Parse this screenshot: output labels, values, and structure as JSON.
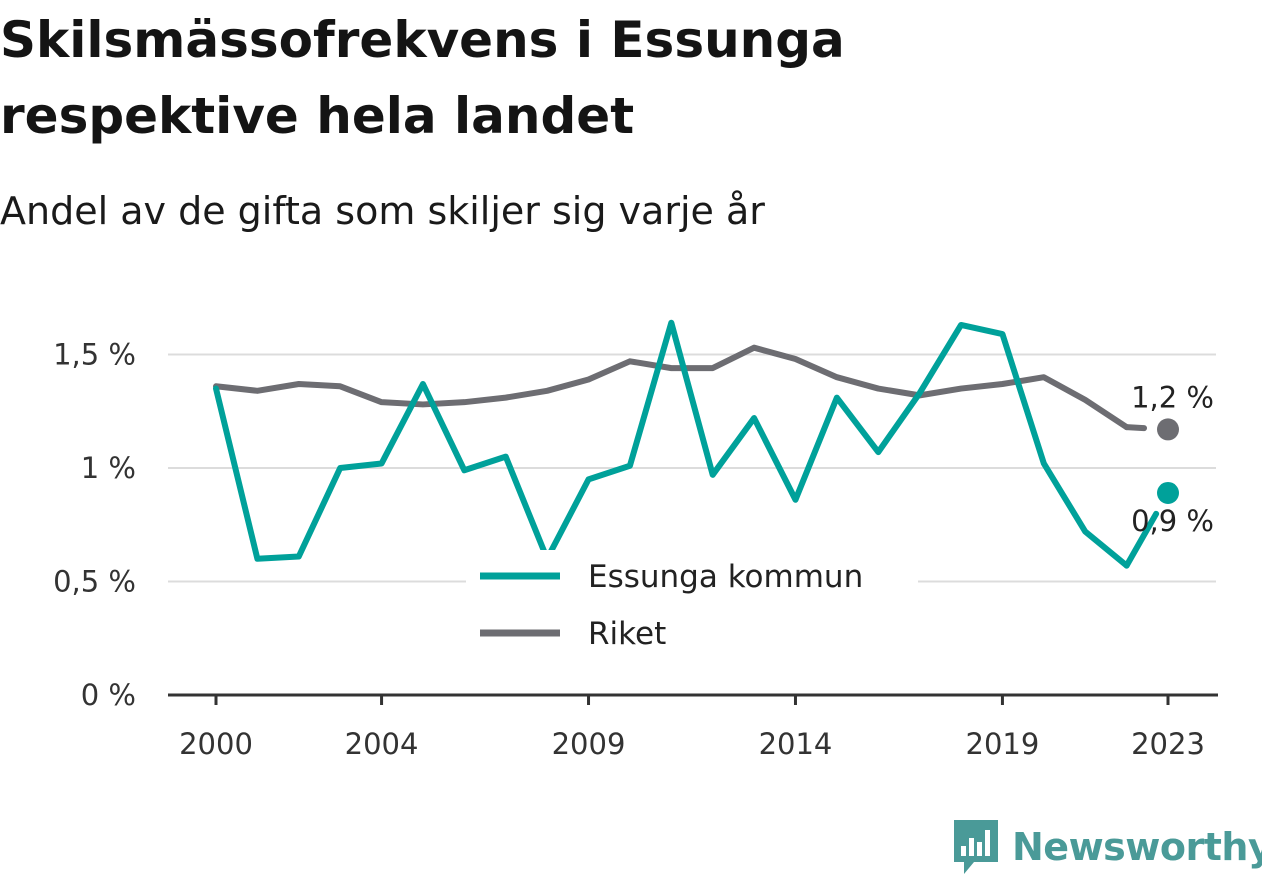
{
  "header": {
    "title": "Skilsmässofrekvens i Essunga respektive hela landet",
    "subtitle": "Andel av de gifta som skiljer sig varje år"
  },
  "brand": {
    "name": "Newsworthy",
    "icon": "newsworthy-chart-bubble-icon",
    "color": "#4a9a98"
  },
  "chart_data": {
    "type": "line",
    "x": [
      2000,
      2001,
      2002,
      2003,
      2004,
      2005,
      2006,
      2007,
      2008,
      2009,
      2010,
      2011,
      2012,
      2013,
      2014,
      2015,
      2016,
      2017,
      2018,
      2019,
      2020,
      2021,
      2022,
      2023
    ],
    "x_ticks": [
      "2000",
      "2004",
      "2009",
      "2014",
      "2019",
      "2023"
    ],
    "y_ticks": [
      "0 %",
      "0,5 %",
      "1 %",
      "1,5 %"
    ],
    "ylim": [
      0,
      1.65
    ],
    "grid": true,
    "legend": "center",
    "series": [
      {
        "name": "Essunga kommun",
        "color": "#00a19a",
        "values": [
          1.35,
          0.6,
          0.61,
          1.0,
          1.02,
          1.37,
          0.99,
          1.05,
          0.6,
          0.95,
          1.01,
          1.64,
          0.97,
          1.22,
          0.86,
          1.31,
          1.07,
          1.33,
          1.63,
          1.59,
          1.02,
          0.72,
          0.57,
          0.89
        ],
        "end_label": "0,9 %"
      },
      {
        "name": "Riket",
        "color": "#6d6d72",
        "values": [
          1.36,
          1.34,
          1.37,
          1.36,
          1.29,
          1.28,
          1.29,
          1.31,
          1.34,
          1.39,
          1.47,
          1.44,
          1.44,
          1.53,
          1.48,
          1.4,
          1.35,
          1.32,
          1.35,
          1.37,
          1.4,
          1.3,
          1.18,
          1.17
        ],
        "end_label": "1,2 %"
      }
    ]
  }
}
